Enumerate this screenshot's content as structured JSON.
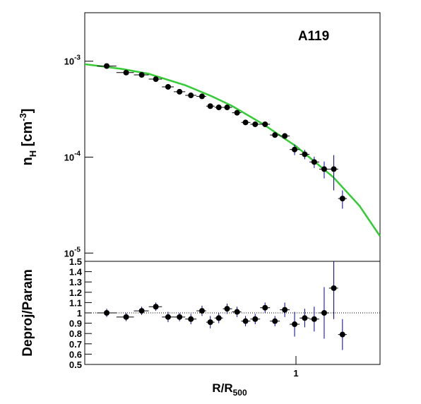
{
  "chart_data": [
    {
      "type": "scatter",
      "title": "A119",
      "ylabel": {
        "main": "n",
        "sub": "H",
        "mid": " [cm",
        "sup": "-3",
        "end": "]"
      },
      "log_x": true,
      "log_y": true,
      "xlim": [
        0.1,
        2.5
      ],
      "ylim": [
        8.2e-06,
        0.0032
      ],
      "yticks": [
        {
          "value": 1e-05,
          "label": "10",
          "exponent": "-5"
        },
        {
          "value": 0.0001,
          "label": "10",
          "exponent": "-4"
        },
        {
          "value": 0.001,
          "label": "10",
          "exponent": "-3"
        }
      ],
      "x": [
        0.127,
        0.157,
        0.186,
        0.217,
        0.248,
        0.281,
        0.318,
        0.359,
        0.393,
        0.431,
        0.472,
        0.526,
        0.577,
        0.641,
        0.714,
        0.795,
        0.885,
        0.985,
        1.1,
        1.22,
        1.36,
        1.51,
        1.66
      ],
      "series": [
        {
          "name": "Deproj",
          "color": "#000000",
          "values": [
            0.00089,
            0.00076,
            0.00072,
            0.00065,
            0.00054,
            0.00048,
            0.00044,
            0.00043,
            0.00034,
            0.00033,
            0.00033,
            0.00029,
            0.00023,
            0.00022,
            0.00022,
            0.00017,
            0.000166,
            0.00012,
            0.000107,
            8.9e-05,
            7.5e-05,
            7.5e-05,
            3.7e-05
          ],
          "yerr": [
            3e-05,
            3e-05,
            3e-05,
            3e-05,
            2e-05,
            2e-05,
            2e-05,
            2e-05,
            1.5e-05,
            1.5e-05,
            1.5e-05,
            1.2e-05,
            1e-05,
            1e-05,
            1e-05,
            1e-05,
            1e-05,
            1.5e-05,
            1.2e-05,
            1.2e-05,
            1.5e-05,
            3e-05,
            8e-06
          ]
        },
        {
          "name": "Param",
          "color": "#33cc33",
          "x": [
            0.1,
            0.15,
            0.2,
            0.3,
            0.4,
            0.5,
            0.7,
            1,
            1.5,
            2,
            2.5
          ],
          "values": [
            0.00093,
            0.00083,
            0.00074,
            0.00056,
            0.00043,
            0.00034,
            0.00022,
            0.00013,
            6.2e-05,
            3.1e-05,
            1.5e-05
          ]
        }
      ]
    },
    {
      "type": "ratio",
      "ylabel": "Deproj/Param",
      "xlabel": {
        "main": "R/R",
        "sub": "500"
      },
      "log_x": true,
      "xlim": [
        0.1,
        2.5
      ],
      "xticks": [
        1
      ],
      "ylim": [
        0.5,
        1.5
      ],
      "yticks": [
        0.5,
        0.6,
        0.7,
        0.8,
        0.9,
        1,
        1.1,
        1.2,
        1.3,
        1.4,
        1.5
      ],
      "reference": 1,
      "x": [
        0.127,
        0.157,
        0.186,
        0.217,
        0.248,
        0.281,
        0.318,
        0.359,
        0.393,
        0.431,
        0.472,
        0.526,
        0.577,
        0.641,
        0.714,
        0.795,
        0.885,
        0.985,
        1.1,
        1.22,
        1.36,
        1.51,
        1.66
      ],
      "color": "#000000",
      "errcolor": "#000099",
      "values": [
        1.0,
        0.96,
        1.02,
        1.06,
        0.96,
        0.96,
        0.94,
        1.02,
        0.91,
        0.95,
        1.04,
        1.01,
        0.92,
        0.94,
        1.05,
        0.92,
        1.03,
        0.89,
        0.95,
        0.94,
        1.0,
        1.24,
        0.79
      ],
      "yerr": [
        0.04,
        0.04,
        0.04,
        0.04,
        0.05,
        0.04,
        0.05,
        0.05,
        0.06,
        0.05,
        0.05,
        0.05,
        0.05,
        0.05,
        0.05,
        0.05,
        0.07,
        0.12,
        0.09,
        0.12,
        0.25,
        0.3,
        0.15
      ]
    }
  ]
}
